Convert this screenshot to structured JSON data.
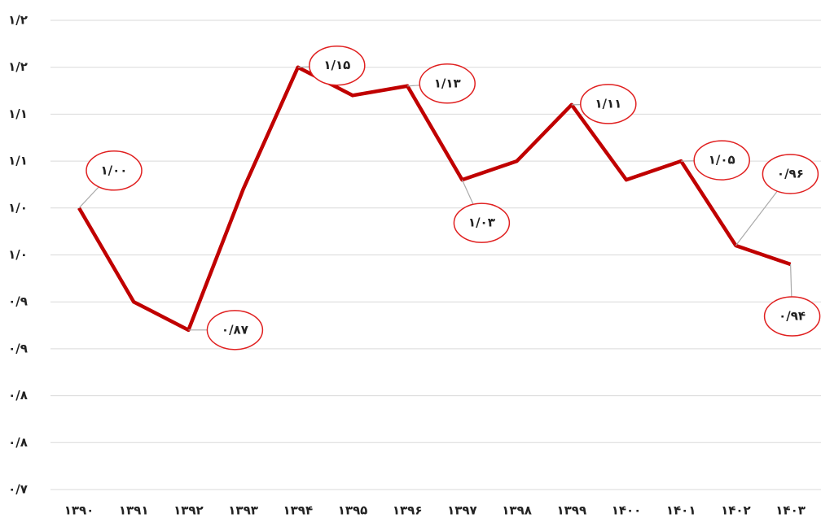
{
  "chart_data": {
    "type": "line",
    "categories": [
      "۱۳۹۰",
      "۱۳۹۱",
      "۱۳۹۲",
      "۱۳۹۳",
      "۱۳۹۴",
      "۱۳۹۵",
      "۱۳۹۶",
      "۱۳۹۷",
      "۱۳۹۸",
      "۱۳۹۹",
      "۱۴۰۰",
      "۱۴۰۱",
      "۱۴۰۲",
      "۱۴۰۳"
    ],
    "values": [
      1.0,
      0.9,
      0.87,
      1.02,
      1.15,
      1.12,
      1.13,
      1.03,
      1.05,
      1.11,
      1.03,
      1.05,
      0.96,
      0.94
    ],
    "value_labels": [
      "۱/۰۰",
      null,
      "۰/۸۷",
      null,
      "۱/۱۵",
      null,
      "۱/۱۳",
      "۱/۰۳",
      null,
      "۱/۱۱",
      null,
      "۱/۰۵",
      "۰/۹۶",
      "۰/۹۴"
    ],
    "color": "#c00000",
    "ylim": [
      0.7,
      1.2
    ],
    "yticks": [
      {
        "value": 0.7,
        "label": "۰/۷"
      },
      {
        "value": 0.75,
        "label": "۰/۸"
      },
      {
        "value": 0.8,
        "label": "۰/۸"
      },
      {
        "value": 0.85,
        "label": "۰/۹"
      },
      {
        "value": 0.9,
        "label": "۰/۹"
      },
      {
        "value": 0.95,
        "label": "۱/۰"
      },
      {
        "value": 1.0,
        "label": "۱/۰"
      },
      {
        "value": 1.05,
        "label": "۱/۱"
      },
      {
        "value": 1.1,
        "label": "۱/۱"
      },
      {
        "value": 1.15,
        "label": "۱/۲"
      },
      {
        "value": 1.2,
        "label": "۱/۲"
      }
    ],
    "grid": true
  }
}
